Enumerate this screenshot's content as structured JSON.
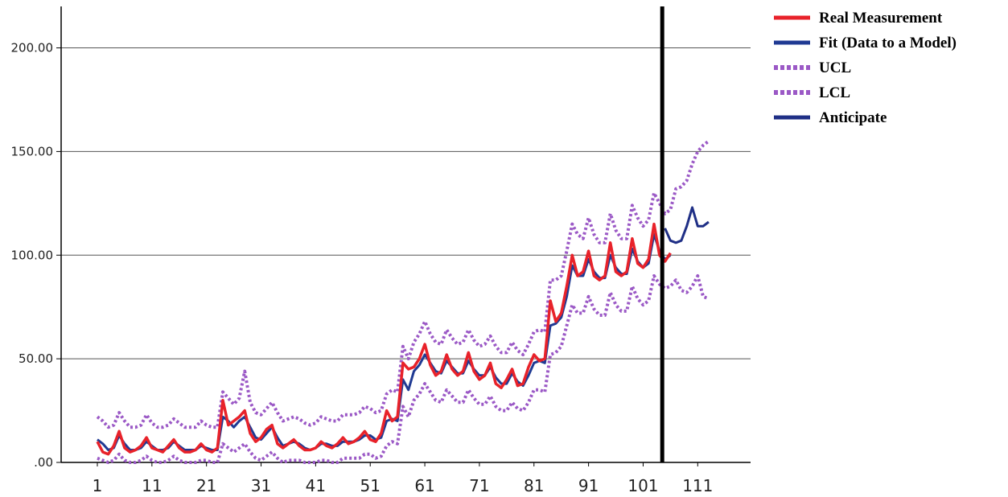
{
  "chart_data": {
    "type": "line",
    "title": "",
    "xlabel": "",
    "ylabel": "",
    "xlim": [
      1,
      117
    ],
    "ylim": [
      0,
      220
    ],
    "grid": "horizontal",
    "legend_position": "top-right",
    "x_ticks": [
      "1",
      "11",
      "21",
      "31",
      "41",
      "51",
      "61",
      "71",
      "81",
      "91",
      "101",
      "111"
    ],
    "y_ticks": [
      ".00",
      "50.00",
      "100.00",
      "150.00",
      "200.00"
    ],
    "forecast_start_x": 104.5,
    "legend": [
      {
        "label": "Real Measurement",
        "color": "#e8222a",
        "style": "solid"
      },
      {
        "label": "Fit (Data to a Model)",
        "color": "#1f3a93",
        "style": "solid"
      },
      {
        "label": "UCL",
        "color": "#9b59c6",
        "style": "dotted"
      },
      {
        "label": "LCL",
        "color": "#9b59c6",
        "style": "dotted"
      },
      {
        "label": "Anticipate",
        "color": "#1f2f86",
        "style": "solid"
      }
    ],
    "series": [
      {
        "name": "Real Measurement",
        "color": "#e8222a",
        "x_start": 1,
        "values": [
          10,
          5,
          4,
          8,
          15,
          7,
          5,
          6,
          8,
          12,
          7,
          6,
          5,
          8,
          11,
          7,
          5,
          5,
          6,
          9,
          6,
          5,
          7,
          30,
          18,
          20,
          22,
          25,
          14,
          10,
          12,
          16,
          18,
          9,
          7,
          9,
          11,
          8,
          6,
          6,
          7,
          10,
          8,
          7,
          9,
          12,
          9,
          10,
          12,
          15,
          11,
          10,
          14,
          25,
          20,
          22,
          48,
          45,
          46,
          50,
          57,
          47,
          42,
          44,
          52,
          45,
          42,
          44,
          53,
          44,
          40,
          42,
          48,
          38,
          36,
          40,
          45,
          37,
          38,
          46,
          52,
          49,
          50,
          78,
          68,
          72,
          85,
          100,
          90,
          92,
          102,
          90,
          88,
          90,
          106,
          92,
          90,
          92,
          108,
          96,
          94,
          98,
          115,
          100,
          97,
          101
        ]
      },
      {
        "name": "Fit (Data to a Model)",
        "color": "#1f3a93",
        "x_start": 1,
        "values": [
          11,
          9,
          6,
          7,
          13,
          9,
          6,
          6,
          7,
          10,
          8,
          6,
          6,
          7,
          10,
          8,
          6,
          6,
          6,
          8,
          7,
          6,
          6,
          22,
          20,
          17,
          20,
          22,
          17,
          12,
          11,
          14,
          17,
          12,
          8,
          9,
          10,
          9,
          7,
          6,
          7,
          9,
          9,
          8,
          8,
          10,
          10,
          10,
          11,
          13,
          13,
          11,
          12,
          20,
          21,
          20,
          40,
          35,
          44,
          47,
          52,
          48,
          44,
          43,
          49,
          46,
          43,
          43,
          49,
          45,
          42,
          42,
          46,
          41,
          38,
          38,
          43,
          39,
          37,
          42,
          48,
          49,
          48,
          66,
          67,
          70,
          80,
          95,
          90,
          90,
          98,
          92,
          89,
          89,
          100,
          94,
          91,
          91,
          103,
          97,
          94,
          96,
          110,
          102,
          98,
          100
        ]
      },
      {
        "name": "UCL",
        "color": "#9b59c6",
        "style": "dotted",
        "x_start": 1,
        "values": [
          22,
          20,
          17,
          18,
          24,
          20,
          17,
          17,
          18,
          23,
          19,
          17,
          17,
          18,
          21,
          19,
          17,
          17,
          17,
          20,
          18,
          17,
          17,
          34,
          31,
          28,
          31,
          44,
          29,
          24,
          23,
          26,
          29,
          24,
          20,
          21,
          22,
          21,
          19,
          18,
          19,
          22,
          21,
          20,
          20,
          23,
          23,
          23,
          24,
          27,
          26,
          24,
          25,
          33,
          35,
          34,
          56,
          50,
          58,
          62,
          68,
          62,
          58,
          57,
          64,
          60,
          57,
          58,
          64,
          59,
          56,
          57,
          61,
          56,
          53,
          53,
          58,
          54,
          52,
          57,
          63,
          64,
          63,
          88,
          88,
          90,
          102,
          115,
          110,
          108,
          118,
          110,
          106,
          106,
          120,
          112,
          108,
          108,
          124,
          118,
          114,
          117,
          130,
          125,
          120,
          122,
          132,
          133,
          136,
          144,
          150,
          153,
          155
        ]
      },
      {
        "name": "LCL",
        "color": "#9b59c6",
        "style": "dotted",
        "x_start": 1,
        "values": [
          2,
          1,
          0,
          1,
          4,
          1,
          0,
          0,
          1,
          3,
          1,
          0,
          0,
          1,
          3,
          1,
          0,
          0,
          0,
          1,
          1,
          0,
          0,
          9,
          7,
          5,
          7,
          9,
          5,
          2,
          1,
          3,
          5,
          2,
          0,
          1,
          1,
          1,
          0,
          0,
          0,
          1,
          1,
          0,
          0,
          2,
          2,
          2,
          2,
          4,
          4,
          2,
          3,
          8,
          10,
          9,
          27,
          22,
          30,
          33,
          38,
          34,
          30,
          29,
          35,
          32,
          29,
          29,
          35,
          31,
          28,
          28,
          32,
          27,
          25,
          25,
          29,
          26,
          25,
          29,
          35,
          35,
          34,
          52,
          53,
          56,
          66,
          76,
          72,
          72,
          80,
          74,
          71,
          71,
          82,
          76,
          73,
          73,
          85,
          79,
          76,
          78,
          90,
          86,
          84,
          85,
          88,
          83,
          82,
          85,
          90,
          80,
          79
        ]
      },
      {
        "name": "Anticipate",
        "color": "#1f2f86",
        "x_start": 105,
        "values": [
          113,
          107,
          106,
          107,
          114,
          123,
          114,
          114,
          116
        ]
      }
    ]
  }
}
